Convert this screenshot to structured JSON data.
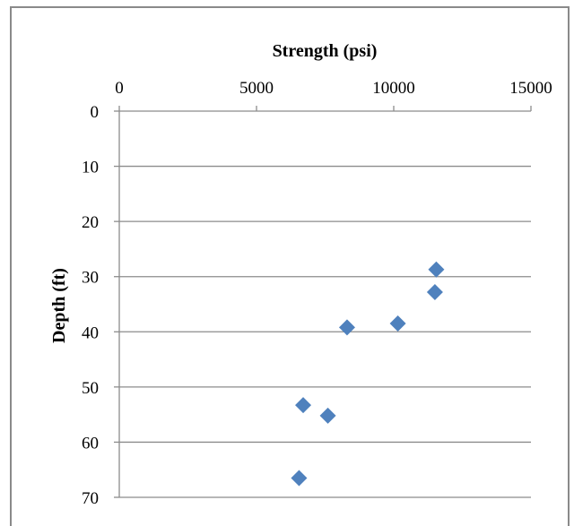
{
  "chart_data": {
    "type": "scatter",
    "title": "",
    "xlabel": "Strength (psi)",
    "ylabel": "Depth (ft)",
    "xlim": [
      0,
      15000
    ],
    "ylim": [
      0,
      70
    ],
    "x_ticks": [
      0,
      5000,
      10000,
      15000
    ],
    "y_ticks": [
      0,
      10,
      20,
      30,
      40,
      50,
      60,
      70
    ],
    "x_axis_position": "top",
    "y_axis_inverted": true,
    "grid": "horizontal",
    "legend": "none",
    "marker": "diamond",
    "marker_color": "#4F81BD",
    "series": [
      {
        "x": [
          11550,
          11500,
          10150,
          8300,
          6700,
          7600,
          6550
        ],
        "y": [
          28.7,
          32.8,
          38.5,
          39.2,
          53.3,
          55.2,
          66.5
        ]
      }
    ]
  }
}
